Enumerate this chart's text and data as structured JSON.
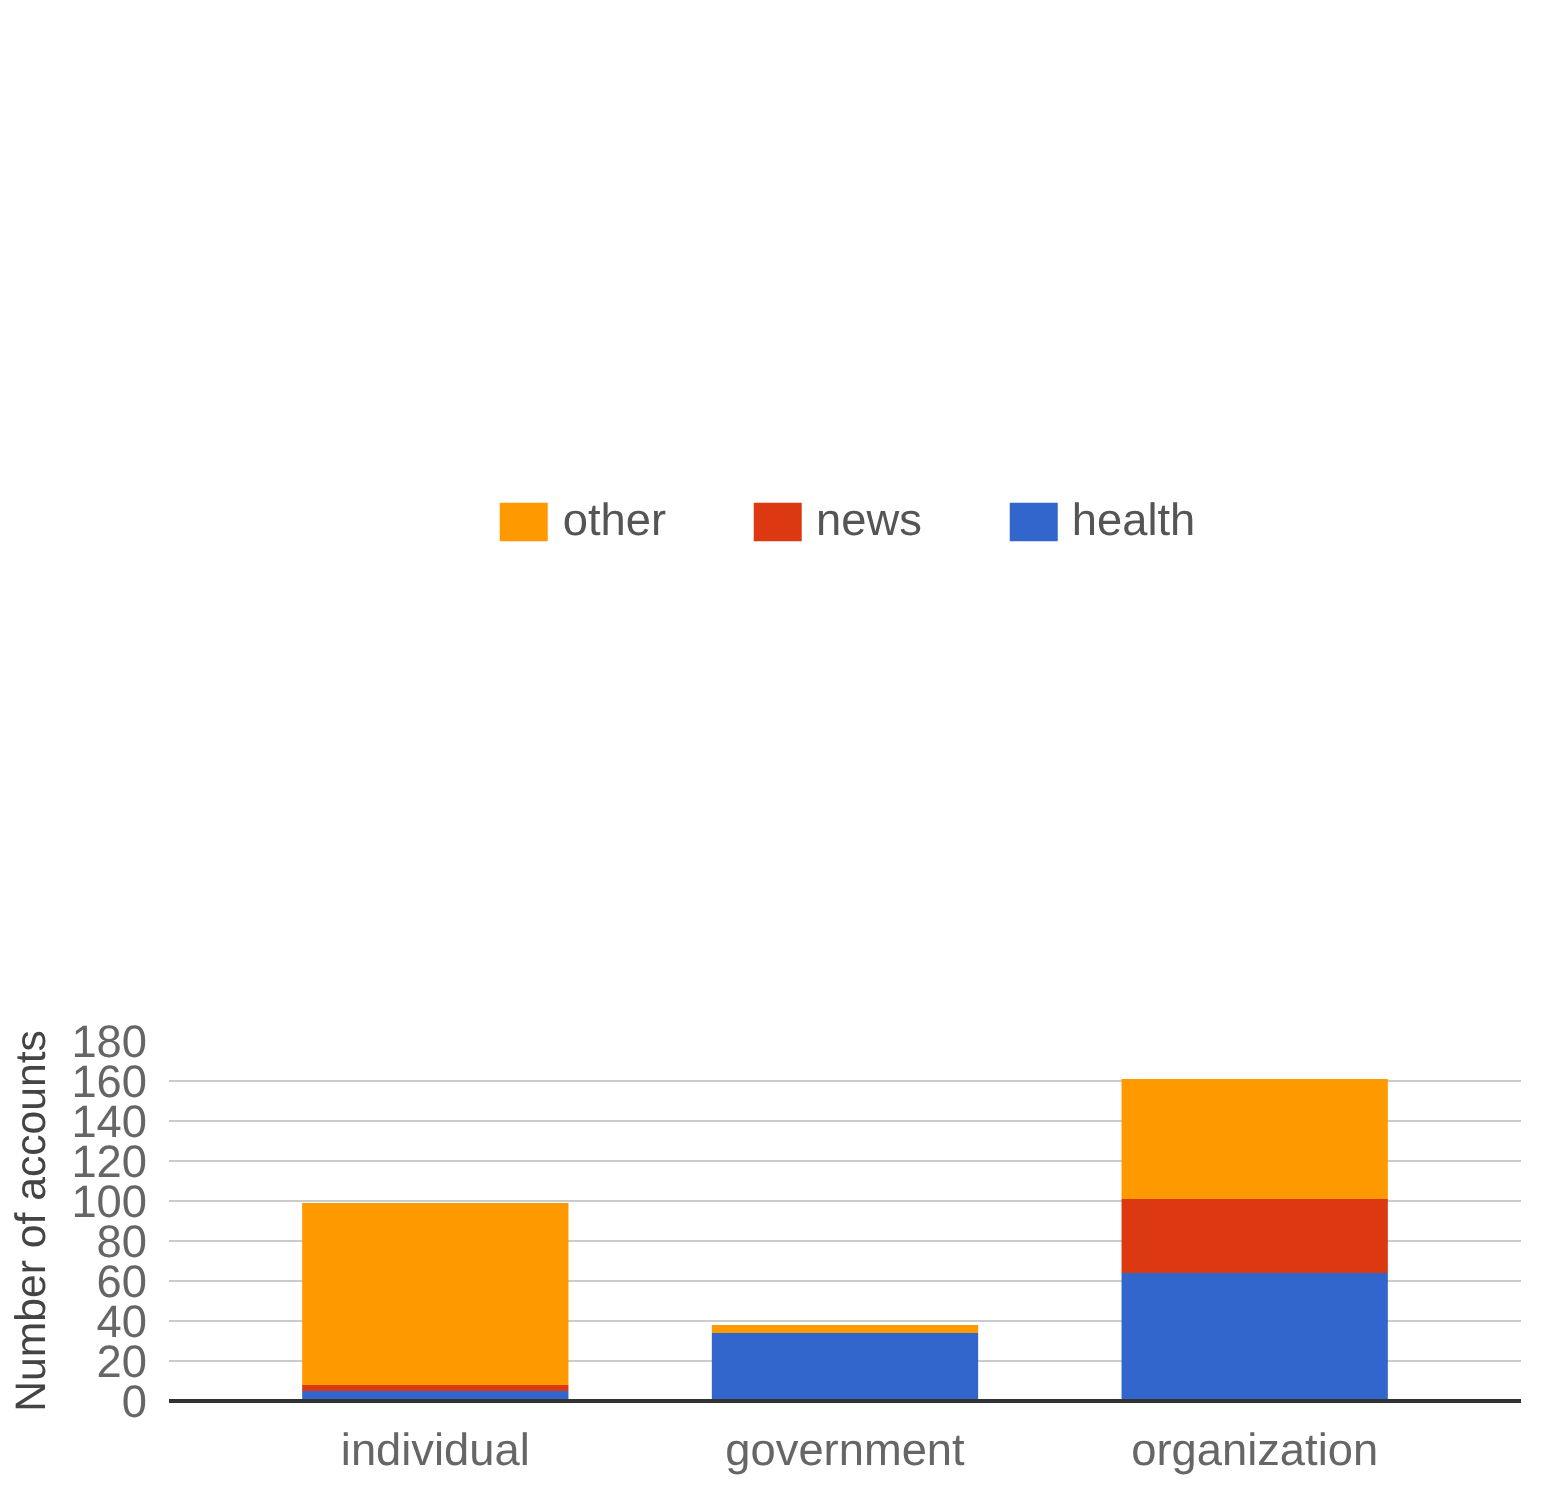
{
  "chart_data": {
    "type": "bar",
    "stacked": true,
    "ylabel": "Number of accounts",
    "categories": [
      "individual",
      "government",
      "organization"
    ],
    "series": [
      {
        "name": "health",
        "color": "#3366cc",
        "values": [
          5,
          34,
          64
        ]
      },
      {
        "name": "news",
        "color": "#dc3912",
        "values": [
          3,
          0,
          37
        ]
      },
      {
        "name": "other",
        "color": "#ff9900",
        "values": [
          91,
          4,
          60
        ]
      }
    ],
    "ylim": [
      0,
      180
    ],
    "yticks": [
      0,
      20,
      40,
      60,
      80,
      100,
      120,
      140,
      160,
      180
    ],
    "grid": "y",
    "legend": "top"
  }
}
